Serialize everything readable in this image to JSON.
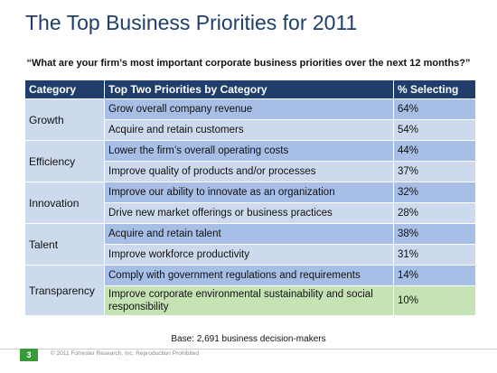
{
  "slide": {
    "title": "The Top Business Priorities for 2011",
    "question": "“What are your firm’s most important corporate business priorities over the next 12 months?”",
    "base": "Base: 2,691 business decision-makers",
    "page_number": "3",
    "copyright": "© 2011 Forrester Research, Inc. Reproduction Prohibited"
  },
  "table": {
    "headers": [
      "Category",
      "Top Two Priorities by Category",
      "% Selecting"
    ],
    "groups": [
      {
        "category": "Growth",
        "rows": [
          {
            "priority": "Grow overall company revenue",
            "pct": "64%"
          },
          {
            "priority": "Acquire and retain customers",
            "pct": "54%"
          }
        ]
      },
      {
        "category": "Efficiency",
        "rows": [
          {
            "priority": "Lower the firm’s overall operating costs",
            "pct": "44%"
          },
          {
            "priority": "Improve quality of products and/or processes",
            "pct": "37%"
          }
        ]
      },
      {
        "category": "Innovation",
        "rows": [
          {
            "priority": "Improve our ability to innovate as an organization",
            "pct": "32%"
          },
          {
            "priority": "Drive new market offerings or business practices",
            "pct": "28%"
          }
        ]
      },
      {
        "category": "Talent",
        "rows": [
          {
            "priority": "Acquire and retain talent",
            "pct": "38%"
          },
          {
            "priority": "Improve workforce productivity",
            "pct": "31%"
          }
        ]
      },
      {
        "category": "Transparency",
        "rows": [
          {
            "priority": "Comply with government regulations and requirements",
            "pct": "14%"
          },
          {
            "priority": "Improve corporate environmental sustainability and social responsibility",
            "pct": "10%"
          }
        ]
      }
    ]
  }
}
